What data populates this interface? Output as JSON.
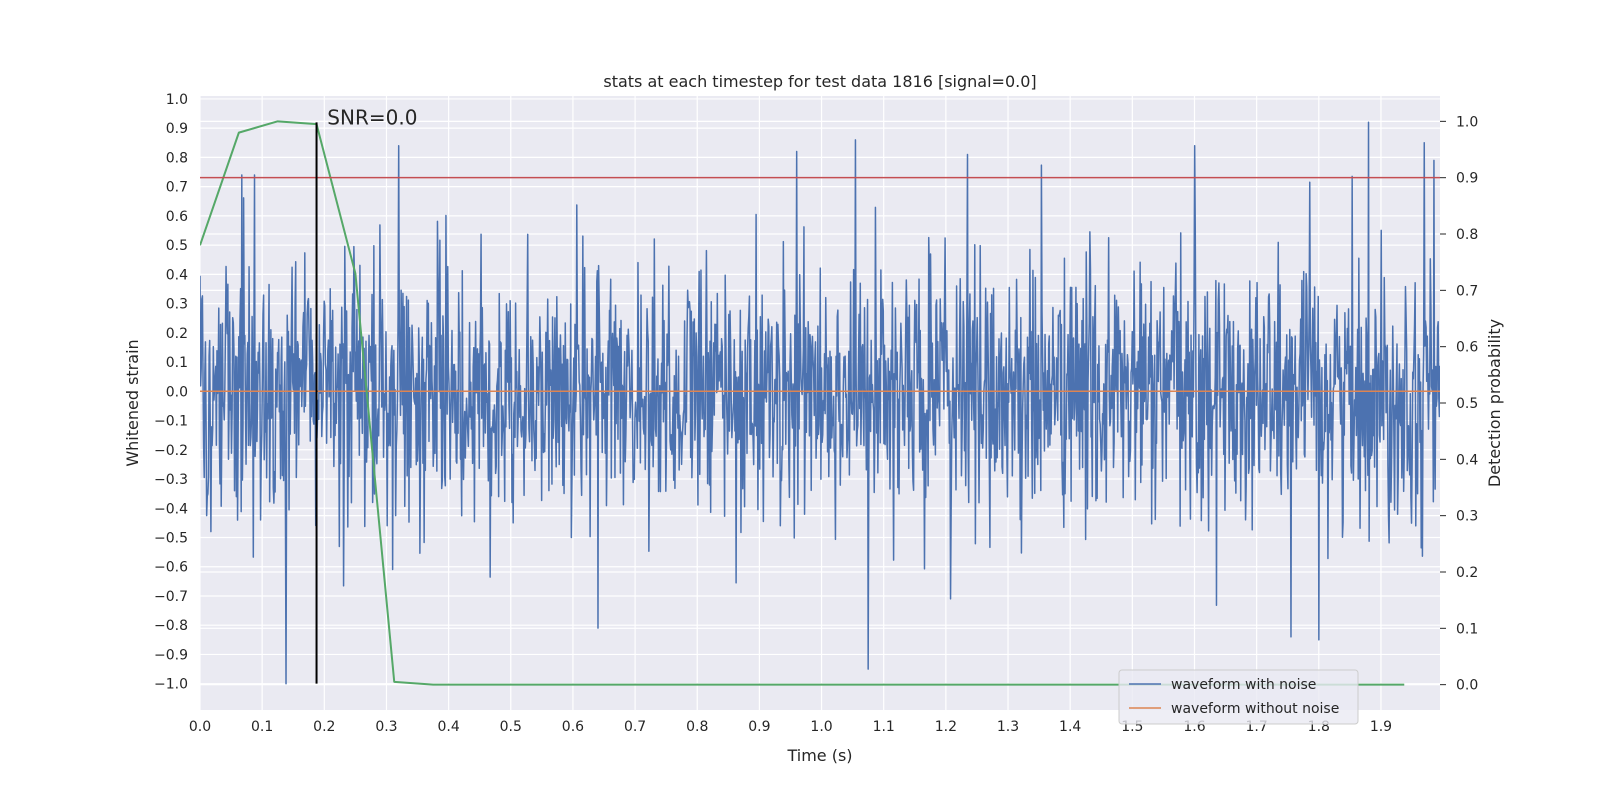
{
  "chart_data": {
    "type": "line",
    "title": "stats at each timestep for test data 1816 [signal=0.0]",
    "xlabel": "Time (s)",
    "ylabel": "Whitened strain",
    "y2label": "Detection probability",
    "xlim": [
      0.0,
      1.995
    ],
    "ylim": [
      -1.09,
      1.01
    ],
    "y2lim": [
      -0.045,
      1.045
    ],
    "xticks": [
      0.0,
      0.1,
      0.2,
      0.3,
      0.4,
      0.5,
      0.6,
      0.7,
      0.8,
      0.9,
      1.0,
      1.1,
      1.2,
      1.3,
      1.4,
      1.5,
      1.6,
      1.7,
      1.8,
      1.9
    ],
    "xtick_labels": [
      "0.0",
      "0.1",
      "0.2",
      "0.3",
      "0.4",
      "0.5",
      "0.6",
      "0.7",
      "0.8",
      "0.9",
      "1.0",
      "1.1",
      "1.2",
      "1.3",
      "1.4",
      "1.5",
      "1.6",
      "1.7",
      "1.8",
      "1.9"
    ],
    "yticks": [
      -1.0,
      -0.9,
      -0.8,
      -0.7,
      -0.6,
      -0.5,
      -0.4,
      -0.3,
      -0.2,
      -0.1,
      0.0,
      0.1,
      0.2,
      0.3,
      0.4,
      0.5,
      0.6,
      0.7,
      0.8,
      0.9,
      1.0
    ],
    "ytick_labels": [
      "−1.0",
      "−0.9",
      "−0.8",
      "−0.7",
      "−0.6",
      "−0.5",
      "−0.4",
      "−0.3",
      "−0.2",
      "−0.1",
      "0.0",
      "0.1",
      "0.2",
      "0.3",
      "0.4",
      "0.5",
      "0.6",
      "0.7",
      "0.8",
      "0.9",
      "1.0"
    ],
    "y2ticks": [
      0.0,
      0.1,
      0.2,
      0.3,
      0.4,
      0.5,
      0.6,
      0.7,
      0.8,
      0.9,
      1.0
    ],
    "y2tick_labels": [
      "0.0",
      "0.1",
      "0.2",
      "0.3",
      "0.4",
      "0.5",
      "0.6",
      "0.7",
      "0.8",
      "0.9",
      "1.0"
    ],
    "grid": true,
    "series": [
      {
        "name": "waveform with noise",
        "color": "#4c72b0",
        "axis": "left",
        "noise_std": 0.22,
        "n_samples": 2048,
        "spikes": [
          [
            0.067,
            0.74
          ],
          [
            0.088,
            0.74
          ],
          [
            0.138,
            -1.0
          ],
          [
            0.32,
            0.84
          ],
          [
            0.64,
            -0.81
          ],
          [
            0.96,
            0.82
          ],
          [
            1.055,
            0.86
          ],
          [
            1.075,
            -0.95
          ],
          [
            1.235,
            0.81
          ],
          [
            1.6,
            0.84
          ],
          [
            1.755,
            -0.84
          ],
          [
            1.8,
            -0.85
          ],
          [
            1.88,
            0.92
          ],
          [
            1.97,
            0.85
          ],
          [
            1.985,
            0.79
          ]
        ]
      },
      {
        "name": "waveform without noise",
        "color": "#dd8452",
        "axis": "left",
        "x": [
          0.0,
          1.995
        ],
        "y": [
          0.0,
          0.0
        ]
      },
      {
        "name": "detection probability",
        "color": "#55a868",
        "axis": "right",
        "x": [
          0.0,
          0.0625,
          0.125,
          0.1875,
          0.25,
          0.3125,
          0.375,
          0.4375,
          0.5,
          1.9375
        ],
        "y": [
          0.78,
          0.98,
          1.0,
          0.995,
          0.73,
          0.005,
          0.0,
          0.0,
          0.0,
          0.0
        ]
      }
    ],
    "threshold": {
      "value": 0.9,
      "axis": "right",
      "color": "#c44e52"
    },
    "marker_line": {
      "x": 0.1875,
      "y_from": -1.0,
      "y_to": 0.92,
      "color": "#000000"
    },
    "annotation": {
      "text": "SNR=0.0",
      "x": 0.2,
      "y": 0.92
    },
    "legend": {
      "location": "lower-right",
      "entries": [
        {
          "label": "waveform with noise",
          "color": "#4c72b0"
        },
        {
          "label": "waveform without noise",
          "color": "#dd8452"
        }
      ]
    }
  }
}
